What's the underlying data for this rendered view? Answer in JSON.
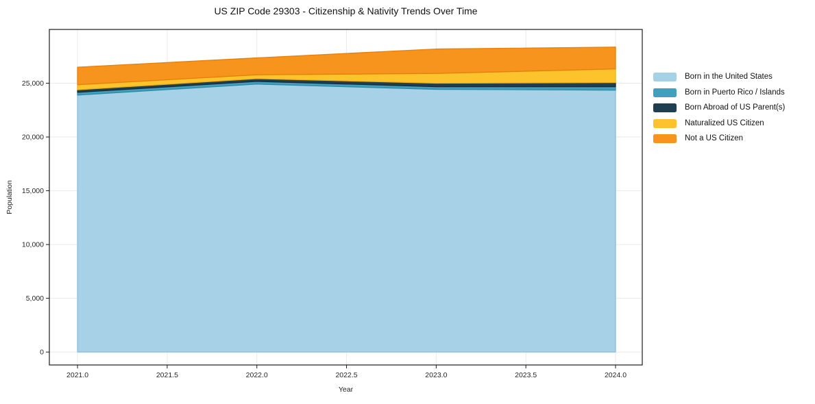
{
  "chart_data": {
    "type": "area",
    "stacked": true,
    "title": "US ZIP Code 29303 - Citizenship & Nativity Trends Over Time",
    "xlabel": "Year",
    "ylabel": "Population",
    "x": [
      2021,
      2022,
      2023,
      2024
    ],
    "series": [
      {
        "name": "Born in the United States",
        "color": "#a6d1e6",
        "edge_color": "#8bbdd8",
        "values": [
          23900,
          24920,
          24430,
          24360
        ]
      },
      {
        "name": "Born in Puerto Rico / Islands",
        "color": "#42a0bd",
        "edge_color": "#2f87a6",
        "values": [
          250,
          250,
          250,
          320
        ]
      },
      {
        "name": "Born Abroad of US Parent(s)",
        "color": "#1f3f51",
        "edge_color": "#152c3c",
        "values": [
          240,
          255,
          320,
          380
        ]
      },
      {
        "name": "Naturalized US Citizen",
        "color": "#fcc32d",
        "edge_color": "#eeae14",
        "values": [
          470,
          360,
          910,
          1270
        ]
      },
      {
        "name": "Not a US Citizen",
        "color": "#f7941d",
        "edge_color": "#e67f0a",
        "values": [
          1630,
          1570,
          2270,
          2030
        ]
      }
    ],
    "stacked_totals": [
      26490,
      27355,
      28180,
      28360
    ],
    "xticks": [
      2021.0,
      2021.5,
      2022.0,
      2022.5,
      2023.0,
      2023.5,
      2024.0
    ],
    "xtick_labels": [
      "2021.0",
      "2021.5",
      "2022.0",
      "2022.5",
      "2023.0",
      "2023.5",
      "2024.0"
    ],
    "yticks": [
      0,
      5000,
      10000,
      15000,
      20000,
      25000
    ],
    "ytick_labels": [
      "0",
      "5,000",
      "10,000",
      "15,000",
      "20,000",
      "25,000"
    ],
    "xlim": [
      2020.843,
      2024.149
    ],
    "ylim": [
      -1200,
      30000
    ],
    "grid": true,
    "legend_position": "right-outside"
  }
}
